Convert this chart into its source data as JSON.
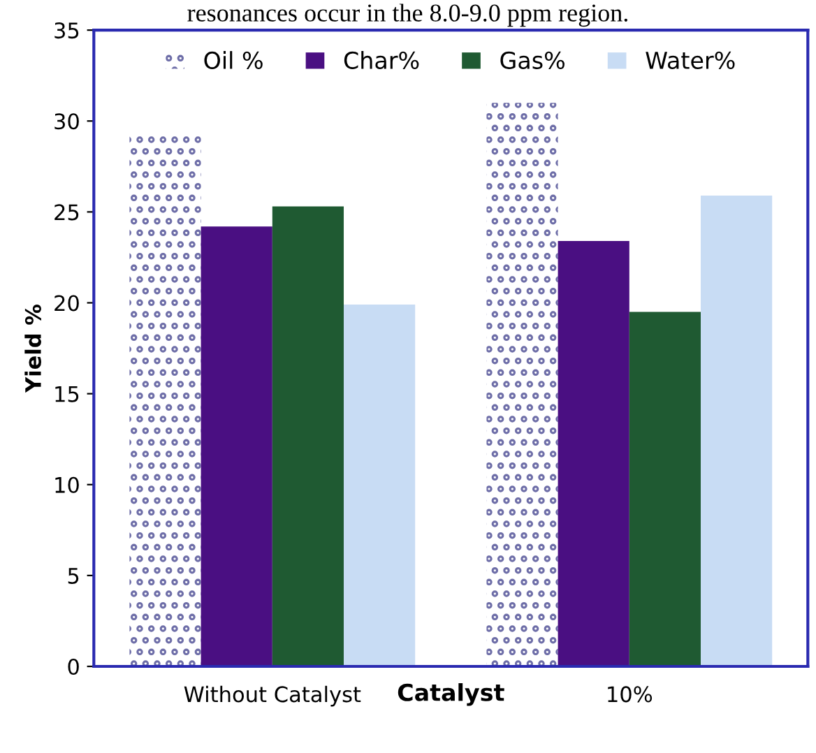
{
  "chart_data": {
    "type": "bar",
    "xlabel": "Catalyst",
    "ylabel": "Yield %",
    "annotations": [
      "resonances occur in the 8.0-9.0 ppm region."
    ],
    "categories": [
      "Without Catalyst",
      "10%"
    ],
    "series": [
      {
        "name": "Oil %",
        "color": "#6e6ea8",
        "values": [
          29.4,
          31.0
        ]
      },
      {
        "name": "Char%",
        "color": "#4a0f82",
        "values": [
          24.2,
          23.4
        ]
      },
      {
        "name": "Gas%",
        "color": "#1f5a32",
        "values": [
          25.3,
          19.5
        ]
      },
      {
        "name": "Water%",
        "color": "#c8dcf4",
        "values": [
          19.9,
          25.9
        ]
      }
    ],
    "ylim": [
      0,
      35
    ],
    "yticks": [
      0,
      5,
      10,
      15,
      20,
      25,
      30,
      35
    ],
    "grid": false,
    "legend": "top"
  }
}
